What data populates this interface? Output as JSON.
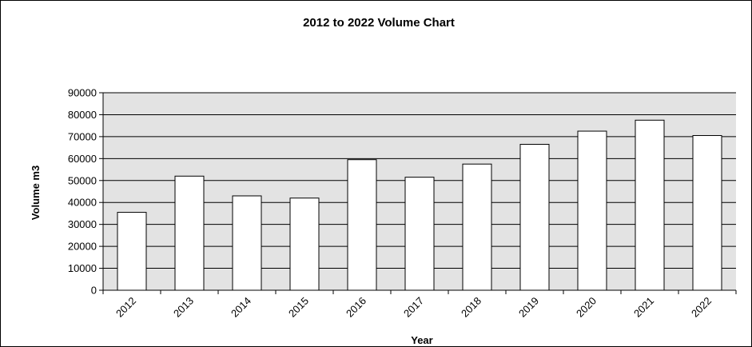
{
  "chart_data": {
    "type": "bar",
    "title": "2012 to 2022 Volume  Chart",
    "xlabel": "Year",
    "ylabel": "Volume m3",
    "categories": [
      "2012",
      "2013",
      "2014",
      "2015",
      "2016",
      "2017",
      "2018",
      "2019",
      "2020",
      "2021",
      "2022"
    ],
    "series": [
      {
        "values": [
          35500,
          52000,
          43000,
          42000,
          59500,
          51500,
          57500,
          66500,
          72500,
          77500,
          70500
        ]
      }
    ],
    "ylim": [
      0,
      90000
    ],
    "yticks": [
      "0",
      "10000",
      "20000",
      "30000",
      "40000",
      "50000",
      "60000",
      "70000",
      "80000",
      "90000"
    ],
    "grid": true,
    "legend": "none",
    "colors": {
      "plot_background": "#e3e3e3",
      "bar_fill": "#ffffff",
      "bar_stroke": "#000000",
      "gridline": "#000000"
    }
  }
}
